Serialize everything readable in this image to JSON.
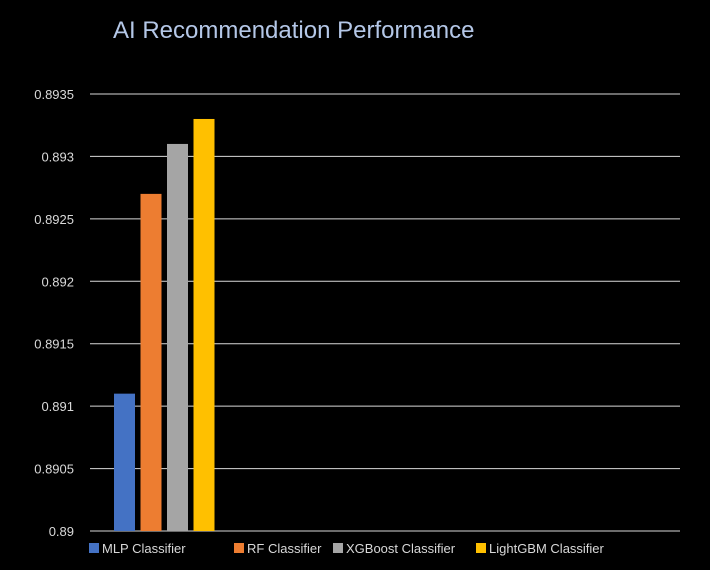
{
  "chart_data": {
    "type": "bar",
    "title": "AI Recommendation Performance",
    "xlabel": "",
    "ylabel": "",
    "categories": [
      ""
    ],
    "series": [
      {
        "name": "MLP Classifier",
        "values": [
          0.8911
        ],
        "color": "#4472C4"
      },
      {
        "name": "RF Classifier",
        "values": [
          0.8927
        ],
        "color": "#ED7D31"
      },
      {
        "name": "XGBoost Classifier",
        "values": [
          0.8931
        ],
        "color": "#A5A5A5"
      },
      {
        "name": "LightGBM Classifier",
        "values": [
          0.8933
        ],
        "color": "#FFC000"
      }
    ],
    "ylim": [
      0.89,
      0.8935
    ],
    "yticks": [
      "0.89",
      "0.8905",
      "0.891",
      "0.8915",
      "0.892",
      "0.8925",
      "0.893",
      "0.8935"
    ],
    "grid": true,
    "legend": "bottom",
    "colors": {
      "background": "#000000",
      "title": "#B4C7E7",
      "tick_text": "#D9D9D9",
      "legend_text": "#D9D9D9",
      "gridline": "#D9D9D9"
    }
  }
}
